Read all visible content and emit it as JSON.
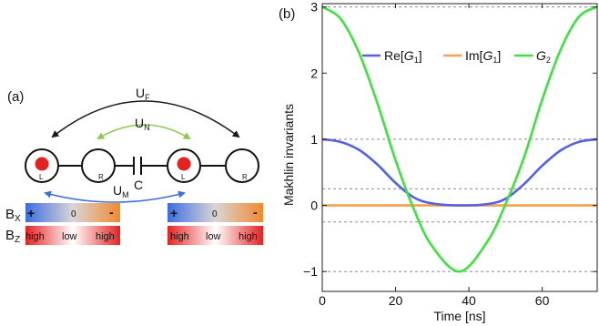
{
  "panel_a": {
    "label": "(a)",
    "couplings": {
      "UF": "U",
      "UF_sub": "F",
      "UN": "U",
      "UN_sub": "N",
      "UM": "U",
      "UM_sub": "M",
      "C": "C"
    },
    "dot_labels": [
      "L",
      "R",
      "L",
      "R"
    ],
    "bx": {
      "label": "B",
      "sub": "X",
      "plus": "+",
      "zero": "0",
      "minus": "-"
    },
    "bz": {
      "label": "B",
      "sub": "Z",
      "left": "high",
      "center": "low",
      "right": "high"
    },
    "colors": {
      "blue": "#3b6de0",
      "orange": "#f08a2c",
      "red": "#e52222",
      "green": "#8cc84b",
      "arrow_blue": "#3d6fd8"
    }
  },
  "panel_b": {
    "label": "(b)"
  },
  "chart_data": {
    "type": "line",
    "xlabel": "Time [ns]",
    "ylabel": "Makhlin invariants",
    "xlim": [
      0,
      75
    ],
    "ylim": [
      -1.3,
      3.05
    ],
    "xticks": [
      0,
      20,
      40,
      60
    ],
    "yticks": [
      -1,
      0,
      1,
      2,
      3
    ],
    "reference_lines": [
      3,
      1,
      0.25,
      -0.25,
      -1
    ],
    "legend_placement": "top",
    "x": [
      0,
      5,
      10,
      15,
      20,
      25,
      30,
      37.5,
      45,
      50,
      55,
      60,
      65,
      70,
      75
    ],
    "series": [
      {
        "name": "Re[G1]",
        "label_main": "Re[",
        "label_italic": "G",
        "label_sub": "1",
        "label_end": "]",
        "color": "#5560e6",
        "values": [
          1.0,
          0.96,
          0.84,
          0.62,
          0.34,
          0.12,
          0.03,
          0.0,
          0.02,
          0.1,
          0.32,
          0.6,
          0.83,
          0.96,
          1.0
        ]
      },
      {
        "name": "Im[G1]",
        "label_main": "Im[",
        "label_italic": "G",
        "label_sub": "1",
        "label_end": "]",
        "color": "#f5a04a",
        "values": [
          0,
          0,
          0,
          0,
          0,
          0,
          0,
          0,
          0,
          0,
          0,
          0,
          0,
          0,
          0
        ]
      },
      {
        "name": "G2",
        "label_main": "",
        "label_italic": "G",
        "label_sub": "2",
        "label_end": "",
        "color": "#3ee23e",
        "values": [
          3.0,
          2.82,
          2.31,
          1.55,
          0.68,
          -0.06,
          -0.62,
          -1.0,
          -0.55,
          0.02,
          0.72,
          1.6,
          2.35,
          2.85,
          3.0
        ]
      }
    ]
  }
}
